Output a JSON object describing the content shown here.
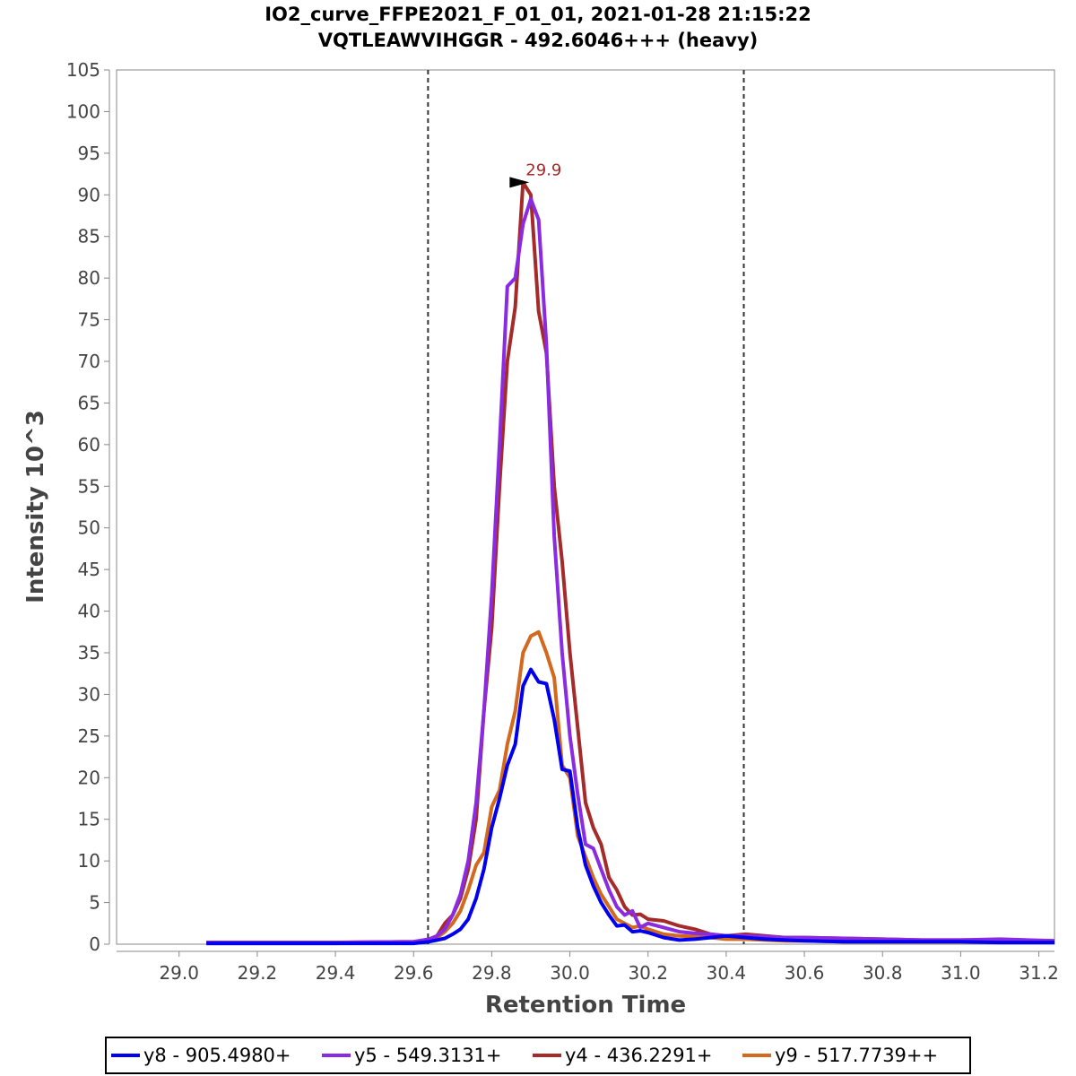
{
  "chart_data": {
    "type": "line",
    "title": "IO2_curve_FFPE2021_F_01_01, 2021-01-28 21:15:22",
    "subtitle": "VQTLEAWVIHGGR - 492.6046+++ (heavy)",
    "xlabel": "Retention Time",
    "ylabel": "Intensity 10^3",
    "xlim": [
      28.84,
      31.24
    ],
    "ylim": [
      0,
      105
    ],
    "xticks": [
      "29.0",
      "29.2",
      "29.4",
      "29.6",
      "29.8",
      "30.0",
      "30.2",
      "30.4",
      "30.6",
      "30.8",
      "31.0",
      "31.2"
    ],
    "yticks": [
      "0",
      "5",
      "10",
      "15",
      "20",
      "25",
      "30",
      "35",
      "40",
      "45",
      "50",
      "55",
      "60",
      "65",
      "70",
      "75",
      "80",
      "85",
      "90",
      "95",
      "100",
      "105"
    ],
    "grid": false,
    "boundaries": [
      29.637,
      30.445
    ],
    "peak_annotation": {
      "label": "29.9",
      "x": 29.91,
      "y": 91.5
    },
    "legend_position": "bottom",
    "series": [
      {
        "name": "y8 - 905.4980+",
        "color": "#0000ee",
        "x": [
          29.07,
          29.2,
          29.4,
          29.6,
          29.64,
          29.66,
          29.68,
          29.7,
          29.72,
          29.74,
          29.76,
          29.78,
          29.8,
          29.82,
          29.84,
          29.86,
          29.88,
          29.9,
          29.92,
          29.94,
          29.96,
          29.98,
          30.0,
          30.02,
          30.04,
          30.06,
          30.08,
          30.1,
          30.12,
          30.14,
          30.16,
          30.18,
          30.2,
          30.24,
          30.28,
          30.32,
          30.36,
          30.4,
          30.45,
          30.5,
          30.55,
          30.6,
          30.7,
          30.8,
          30.9,
          31.0,
          31.1,
          31.24
        ],
        "y": [
          0.1,
          0.1,
          0.1,
          0.1,
          0.3,
          0.5,
          0.7,
          1.2,
          1.8,
          3.0,
          5.5,
          9.0,
          14.0,
          17.5,
          21.5,
          24.0,
          31.0,
          33.0,
          31.5,
          31.3,
          27.0,
          21.0,
          20.8,
          14.0,
          9.5,
          7.0,
          5.0,
          3.5,
          2.2,
          2.3,
          1.5,
          1.6,
          1.4,
          0.8,
          0.5,
          0.6,
          0.8,
          1.0,
          0.8,
          0.6,
          0.5,
          0.4,
          0.3,
          0.3,
          0.3,
          0.3,
          0.2,
          0.2
        ]
      },
      {
        "name": "y5 - 549.3131+",
        "color": "#8a2be2",
        "x": [
          29.07,
          29.2,
          29.4,
          29.6,
          29.64,
          29.66,
          29.68,
          29.7,
          29.72,
          29.74,
          29.76,
          29.78,
          29.8,
          29.82,
          29.84,
          29.86,
          29.88,
          29.9,
          29.92,
          29.94,
          29.96,
          29.98,
          30.0,
          30.02,
          30.04,
          30.06,
          30.08,
          30.1,
          30.12,
          30.14,
          30.16,
          30.18,
          30.2,
          30.24,
          30.28,
          30.32,
          30.36,
          30.4,
          30.45,
          30.5,
          30.55,
          30.6,
          30.7,
          30.8,
          30.9,
          31.0,
          31.1,
          31.24
        ],
        "y": [
          0.2,
          0.2,
          0.2,
          0.3,
          0.6,
          1.0,
          1.8,
          3.5,
          6.0,
          10.0,
          17.0,
          28.0,
          42.0,
          60.0,
          79.0,
          80.0,
          86.5,
          89.5,
          87.0,
          72.0,
          49.0,
          35.0,
          25.0,
          18.0,
          12.0,
          11.5,
          9.0,
          6.5,
          4.5,
          3.5,
          4.0,
          2.0,
          2.5,
          2.0,
          1.5,
          1.3,
          1.2,
          1.0,
          1.0,
          0.9,
          0.8,
          0.8,
          0.7,
          0.6,
          0.5,
          0.5,
          0.6,
          0.4
        ]
      },
      {
        "name": "y4 - 436.2291+",
        "color": "#a52a2a",
        "x": [
          29.07,
          29.2,
          29.4,
          29.6,
          29.64,
          29.66,
          29.68,
          29.7,
          29.72,
          29.74,
          29.76,
          29.78,
          29.8,
          29.82,
          29.84,
          29.86,
          29.88,
          29.9,
          29.92,
          29.94,
          29.96,
          29.98,
          30.0,
          30.02,
          30.04,
          30.06,
          30.08,
          30.1,
          30.12,
          30.14,
          30.16,
          30.18,
          30.2,
          30.24,
          30.28,
          30.32,
          30.36,
          30.4,
          30.45,
          30.5,
          30.55,
          30.6,
          30.7,
          30.8,
          30.9,
          31.0,
          31.1,
          31.24
        ],
        "y": [
          0.2,
          0.2,
          0.2,
          0.3,
          0.5,
          1.0,
          2.5,
          3.5,
          5.5,
          9.0,
          15.0,
          28.0,
          38.0,
          55.0,
          70.0,
          76.5,
          91.5,
          90.0,
          76.0,
          71.0,
          55.0,
          46.0,
          35.0,
          26.0,
          17.0,
          14.0,
          12.0,
          8.0,
          6.5,
          4.5,
          3.5,
          3.6,
          3.0,
          2.8,
          2.2,
          1.8,
          1.2,
          1.0,
          1.2,
          1.0,
          0.8,
          0.8,
          0.7,
          0.6,
          0.5,
          0.5,
          0.5,
          0.4
        ]
      },
      {
        "name": "y9 - 517.7739++",
        "color": "#d2691e",
        "x": [
          29.07,
          29.2,
          29.4,
          29.6,
          29.64,
          29.66,
          29.68,
          29.7,
          29.72,
          29.74,
          29.76,
          29.78,
          29.8,
          29.82,
          29.84,
          29.86,
          29.88,
          29.9,
          29.92,
          29.94,
          29.96,
          29.98,
          30.0,
          30.02,
          30.04,
          30.06,
          30.08,
          30.1,
          30.12,
          30.14,
          30.16,
          30.18,
          30.2,
          30.24,
          30.28,
          30.32,
          30.36,
          30.4,
          30.45,
          30.5,
          30.55,
          30.6,
          30.7,
          30.8,
          30.9,
          31.0,
          31.1,
          31.24
        ],
        "y": [
          0.1,
          0.1,
          0.1,
          0.2,
          0.4,
          0.8,
          1.5,
          2.5,
          4.0,
          6.5,
          9.5,
          11.0,
          16.5,
          18.5,
          24.0,
          28.0,
          35.0,
          37.0,
          37.5,
          35.0,
          32.0,
          21.5,
          20.0,
          13.0,
          10.5,
          8.0,
          6.0,
          4.5,
          3.0,
          2.5,
          2.0,
          2.2,
          1.8,
          1.2,
          1.0,
          0.9,
          0.8,
          0.6,
          0.6,
          0.5,
          0.4,
          0.4,
          0.3,
          0.3,
          0.3,
          0.3,
          0.3,
          0.2
        ]
      }
    ]
  }
}
